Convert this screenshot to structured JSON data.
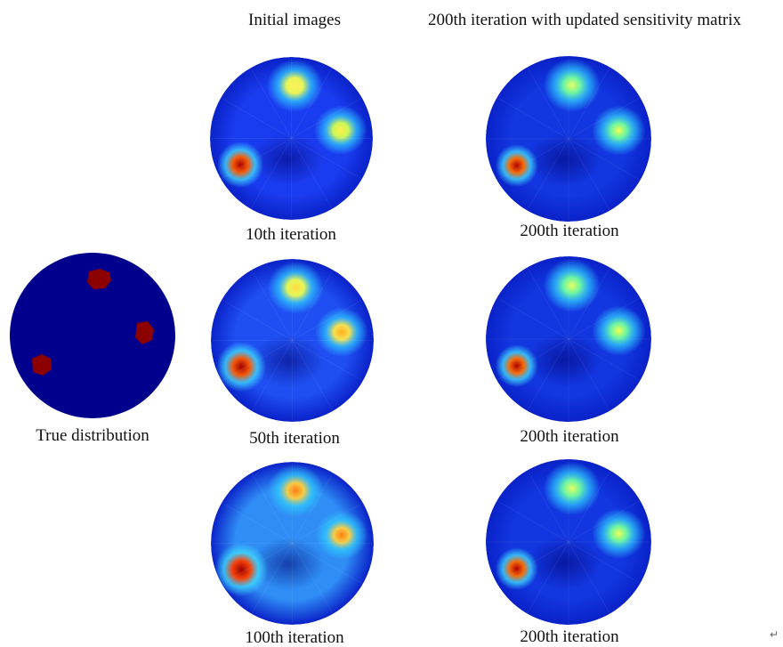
{
  "column_headers": {
    "initial": "Initial images",
    "updated": "200th iteration with updated sensitivity matrix"
  },
  "true_distribution": {
    "label": "True distribution"
  },
  "panels": [
    {
      "label": "10th iteration",
      "stage": "iter10"
    },
    {
      "label": "200th iteration",
      "stage": "updated"
    },
    {
      "label": "50th iteration",
      "stage": "iter50"
    },
    {
      "label": "200th iteration",
      "stage": "updated"
    },
    {
      "label": "100th iteration",
      "stage": "iter100"
    },
    {
      "label": "200th iteration",
      "stage": "updated"
    }
  ],
  "colors": {
    "background_true": "#00008c",
    "inclusion_true": "#8c0000",
    "colormap": [
      "#00008f",
      "#0000ff",
      "#0080ff",
      "#00ffff",
      "#80ff80",
      "#ffff00",
      "#ff8000",
      "#ff0000",
      "#800000"
    ]
  },
  "end_mark": "↵"
}
